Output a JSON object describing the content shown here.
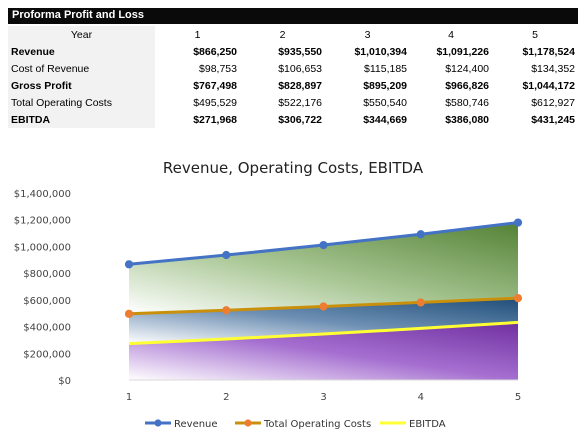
{
  "table": {
    "title": "Proforma Profit and Loss",
    "header_label": "Year",
    "years": [
      "1",
      "2",
      "3",
      "4",
      "5"
    ],
    "rows": [
      {
        "label": "Revenue",
        "bold": true,
        "values": [
          "$866,250",
          "$935,550",
          "$1,010,394",
          "$1,091,226",
          "$1,178,524"
        ]
      },
      {
        "label": "Cost of Revenue",
        "bold": false,
        "values": [
          "$98,753",
          "$106,653",
          "$115,185",
          "$124,400",
          "$134,352"
        ]
      },
      {
        "label": "Gross Profit",
        "bold": true,
        "values": [
          "$767,498",
          "$828,897",
          "$895,209",
          "$966,826",
          "$1,044,172"
        ]
      },
      {
        "label": "Total Operating Costs",
        "bold": false,
        "values": [
          "$495,529",
          "$522,176",
          "$550,540",
          "$580,746",
          "$612,927"
        ]
      },
      {
        "label": "EBITDA",
        "bold": true,
        "values": [
          "$271,968",
          "$306,722",
          "$344,669",
          "$386,080",
          "$431,245"
        ]
      }
    ]
  },
  "chart_data": {
    "type": "area",
    "title": "Revenue, Operating Costs, EBITDA",
    "xlabel": "",
    "ylabel": "",
    "categories": [
      "1",
      "2",
      "3",
      "4",
      "5"
    ],
    "ylim": [
      0,
      1400000
    ],
    "yticks": [
      0,
      200000,
      400000,
      600000,
      800000,
      1000000,
      1200000,
      1400000
    ],
    "ytick_labels": [
      "$0",
      "$200,000",
      "$400,000",
      "$600,000",
      "$800,000",
      "$1,000,000",
      "$1,200,000",
      "$1,400,000"
    ],
    "grid": false,
    "legend": "bottom",
    "series": [
      {
        "name": "Revenue",
        "values": [
          866250,
          935550,
          1010394,
          1091226,
          1178524
        ],
        "color": "#4472c4",
        "marker": true
      },
      {
        "name": "Total Operating Costs",
        "values": [
          495529,
          522176,
          550540,
          580746,
          612927
        ],
        "color": "#c9900c",
        "marker": true,
        "marker_color": "#ed7d31"
      },
      {
        "name": "EBITDA",
        "values": [
          271968,
          306722,
          344669,
          386080,
          431245
        ],
        "color": "#ffff33",
        "marker": false
      }
    ],
    "fill_colors": {
      "revenue_band": "#548235",
      "opcost_band": "#1f4e79",
      "ebitda_band": "#7030a0"
    }
  }
}
